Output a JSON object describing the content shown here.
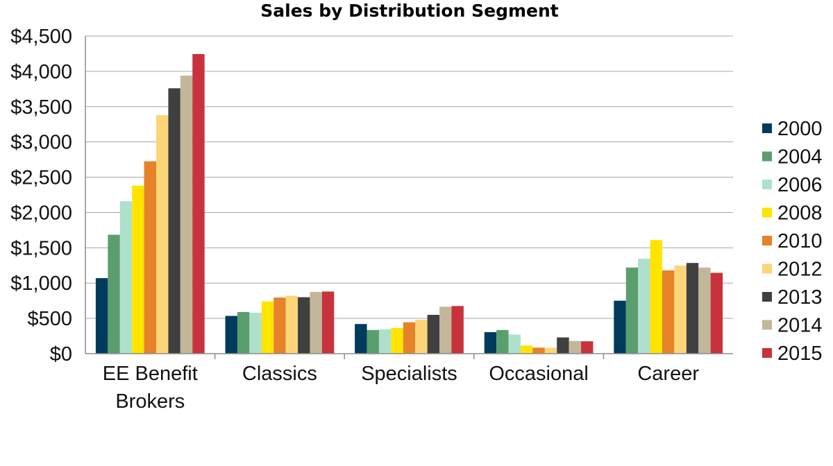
{
  "chart_data": {
    "type": "bar",
    "title": "Sales by Distribution Segment",
    "xlabel": "",
    "ylabel": "",
    "ylim": [
      0,
      4500
    ],
    "yticks": [
      0,
      500,
      1000,
      1500,
      2000,
      2500,
      3000,
      3500,
      4000,
      4500
    ],
    "ytick_labels": [
      "$0",
      "$500",
      "$1,000",
      "$1,500",
      "$2,000",
      "$2,500",
      "$3,000",
      "$3,500",
      "$4,000",
      "$4,500"
    ],
    "grid": true,
    "legend_position": "right",
    "categories": [
      "EE Benefit Brokers",
      "Classics",
      "Specialists",
      "Occasional",
      "Career"
    ],
    "series": [
      {
        "name": "2000",
        "color": "#003a5d",
        "values": [
          1070,
          535,
          420,
          305,
          750
        ]
      },
      {
        "name": "2004",
        "color": "#5b9e6e",
        "values": [
          1685,
          590,
          335,
          335,
          1220
        ]
      },
      {
        "name": "2006",
        "color": "#aee0cc",
        "values": [
          2160,
          580,
          345,
          270,
          1345
        ]
      },
      {
        "name": "2008",
        "color": "#ffe400",
        "values": [
          2380,
          740,
          365,
          115,
          1610
        ]
      },
      {
        "name": "2010",
        "color": "#e5822a",
        "values": [
          2725,
          795,
          445,
          85,
          1180
        ]
      },
      {
        "name": "2012",
        "color": "#fcd57a",
        "values": [
          3380,
          820,
          480,
          85,
          1250
        ]
      },
      {
        "name": "2013",
        "color": "#404040",
        "values": [
          3760,
          800,
          550,
          230,
          1285
        ]
      },
      {
        "name": "2014",
        "color": "#c2b79b",
        "values": [
          3940,
          875,
          665,
          180,
          1220
        ]
      },
      {
        "name": "2015",
        "color": "#c8323c",
        "values": [
          4245,
          880,
          675,
          175,
          1145
        ]
      }
    ]
  }
}
